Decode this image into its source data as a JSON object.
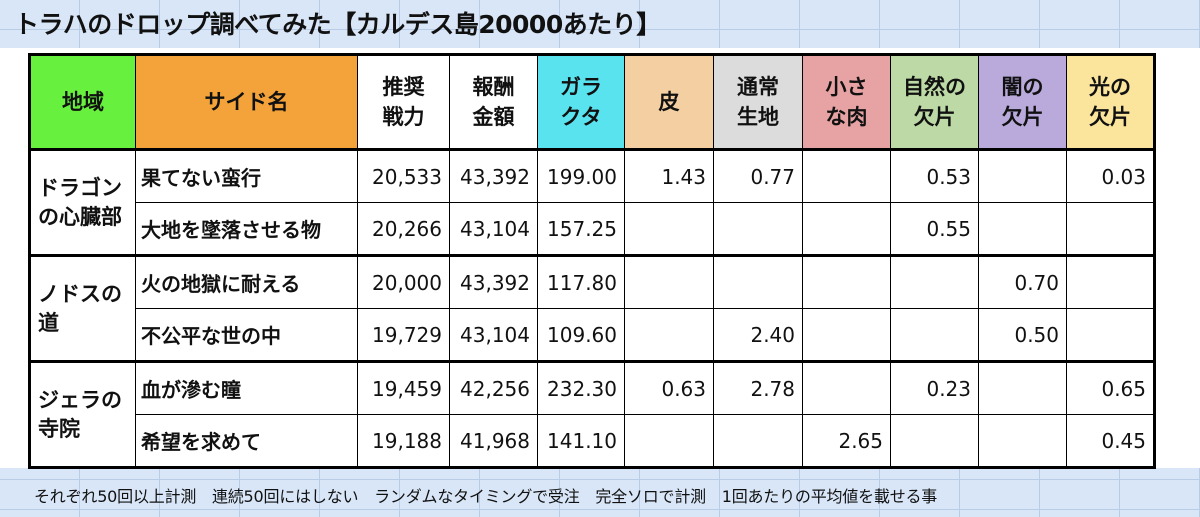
{
  "title": "トラハのドロップ調べてみた【カルデス島20000あたり】",
  "headers": [
    {
      "key": "region",
      "label": "地域",
      "color": "#67f03d"
    },
    {
      "key": "side",
      "label": "サイド名",
      "color": "#f3a33a"
    },
    {
      "key": "power",
      "label": "推奨\n戦力",
      "color": "#ffffff"
    },
    {
      "key": "reward",
      "label": "報酬\n金額",
      "color": "#ffffff"
    },
    {
      "key": "junk",
      "label": "ガラ\nクタ",
      "color": "#59e3ef"
    },
    {
      "key": "leather",
      "label": "皮",
      "color": "#f3cfa2"
    },
    {
      "key": "cloth",
      "label": "通常\n生地",
      "color": "#dcdcdc"
    },
    {
      "key": "meat",
      "label": "小さ\nな肉",
      "color": "#e7a3a3"
    },
    {
      "key": "nature",
      "label": "自然の\n欠片",
      "color": "#bcd9a6"
    },
    {
      "key": "dark",
      "label": "闇の\n欠片",
      "color": "#b9aadb"
    },
    {
      "key": "light",
      "label": "光の\n欠片",
      "color": "#fbe49c"
    }
  ],
  "regions": [
    {
      "name": "ドラゴンの心臓部",
      "rows": [
        {
          "side": "果てない蛮行",
          "values": [
            "20,533",
            "43,392",
            "199.00",
            "1.43",
            "0.77",
            "",
            "0.53",
            "",
            "0.03"
          ]
        },
        {
          "side": "大地を墜落させる物",
          "values": [
            "20,266",
            "43,104",
            "157.25",
            "",
            "",
            "",
            "0.55",
            "",
            ""
          ]
        }
      ]
    },
    {
      "name": "ノドスの道",
      "rows": [
        {
          "side": "火の地獄に耐える",
          "values": [
            "20,000",
            "43,392",
            "117.80",
            "",
            "",
            "",
            "",
            "0.70",
            ""
          ]
        },
        {
          "side": "不公平な世の中",
          "values": [
            "19,729",
            "43,104",
            "109.60",
            "",
            "2.40",
            "",
            "",
            "0.50",
            ""
          ]
        }
      ]
    },
    {
      "name": "ジェラの寺院",
      "rows": [
        {
          "side": "血が滲む瞳",
          "values": [
            "19,459",
            "42,256",
            "232.30",
            "0.63",
            "2.78",
            "",
            "0.23",
            "",
            "0.65"
          ]
        },
        {
          "side": "希望を求めて",
          "values": [
            "19,188",
            "41,968",
            "141.10",
            "",
            "",
            "2.65",
            "",
            "",
            "0.45"
          ]
        }
      ]
    }
  ],
  "footer": "それぞれ50回以上計測　連続50回にはしない　ランダムなタイミングで受注　完全ソロで計測　1回あたりの平均値を載せる事"
}
